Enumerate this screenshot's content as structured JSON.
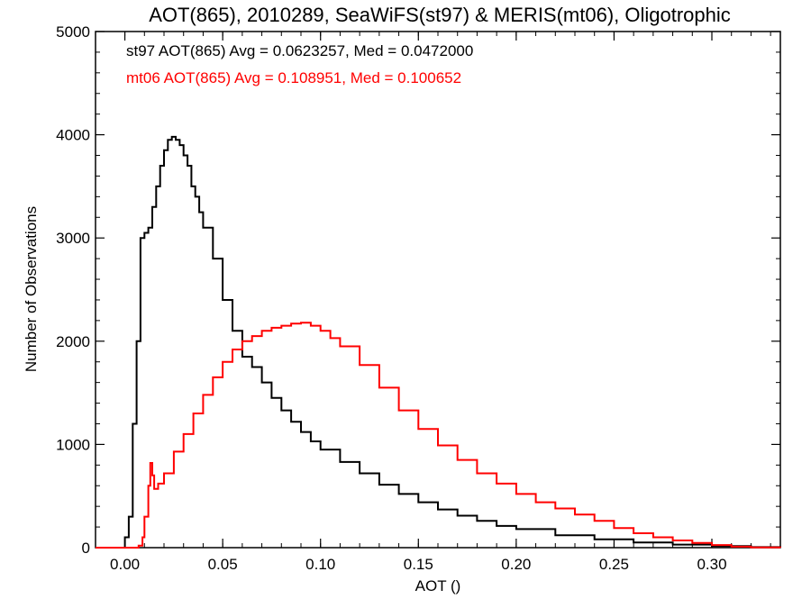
{
  "chart_data": {
    "type": "line",
    "title": "AOT(865), 2010289, SeaWiFS(st97) & MERIS(mt06), Oligotrophic",
    "xlabel": "AOT ()",
    "ylabel": "Number of Observations",
    "xlim": [
      -0.015,
      0.335
    ],
    "ylim": [
      0,
      5000
    ],
    "x_ticks": [
      0.0,
      0.05,
      0.1,
      0.15,
      0.2,
      0.25,
      0.3
    ],
    "x_tick_labels": [
      "0.00",
      "0.05",
      "0.10",
      "0.15",
      "0.20",
      "0.25",
      "0.30"
    ],
    "y_ticks": [
      0,
      1000,
      2000,
      3000,
      4000,
      5000
    ],
    "y_tick_labels": [
      "0",
      "1000",
      "2000",
      "3000",
      "4000",
      "5000"
    ],
    "grid": false,
    "step": true,
    "annotations": [
      {
        "text": "st97 AOT(865) Avg = 0.0623257, Med = 0.0472000",
        "color": "#000000"
      },
      {
        "text": "mt06 AOT(865) Avg = 0.108951, Med = 0.100652",
        "color": "#ff0000"
      }
    ],
    "series": [
      {
        "color": "#000000",
        "x": [
          -0.015,
          -0.002,
          0.0,
          0.002,
          0.004,
          0.006,
          0.008,
          0.01,
          0.012,
          0.014,
          0.016,
          0.018,
          0.02,
          0.022,
          0.024,
          0.026,
          0.028,
          0.03,
          0.032,
          0.034,
          0.036,
          0.038,
          0.04,
          0.045,
          0.05,
          0.055,
          0.06,
          0.065,
          0.07,
          0.075,
          0.08,
          0.085,
          0.09,
          0.095,
          0.1,
          0.11,
          0.12,
          0.13,
          0.14,
          0.15,
          0.16,
          0.17,
          0.18,
          0.19,
          0.2,
          0.22,
          0.24,
          0.26,
          0.28,
          0.3,
          0.32,
          0.335
        ],
        "y": [
          0,
          0,
          100,
          300,
          1200,
          2000,
          3000,
          3050,
          3100,
          3300,
          3500,
          3700,
          3850,
          3950,
          3980,
          3950,
          3900,
          3800,
          3700,
          3500,
          3400,
          3250,
          3100,
          2800,
          2400,
          2100,
          1850,
          1750,
          1600,
          1450,
          1330,
          1220,
          1120,
          1030,
          950,
          830,
          720,
          610,
          520,
          440,
          370,
          310,
          260,
          210,
          180,
          120,
          80,
          50,
          30,
          15,
          5,
          0
        ]
      },
      {
        "color": "#ff0000",
        "x": [
          -0.015,
          0.005,
          0.007,
          0.009,
          0.01,
          0.012,
          0.013,
          0.014,
          0.015,
          0.017,
          0.02,
          0.025,
          0.03,
          0.035,
          0.04,
          0.045,
          0.05,
          0.055,
          0.06,
          0.065,
          0.07,
          0.075,
          0.08,
          0.085,
          0.09,
          0.095,
          0.1,
          0.105,
          0.11,
          0.12,
          0.13,
          0.14,
          0.15,
          0.16,
          0.17,
          0.18,
          0.19,
          0.2,
          0.21,
          0.22,
          0.23,
          0.24,
          0.25,
          0.26,
          0.27,
          0.28,
          0.29,
          0.3,
          0.31,
          0.32,
          0.335
        ],
        "y": [
          0,
          0,
          20,
          100,
          300,
          600,
          820,
          700,
          570,
          620,
          720,
          930,
          1100,
          1300,
          1480,
          1650,
          1800,
          1920,
          2000,
          2050,
          2100,
          2130,
          2150,
          2170,
          2180,
          2150,
          2100,
          2030,
          1950,
          1770,
          1550,
          1330,
          1150,
          990,
          850,
          720,
          620,
          520,
          440,
          380,
          320,
          260,
          190,
          140,
          100,
          70,
          45,
          25,
          10,
          3,
          0
        ]
      }
    ]
  }
}
